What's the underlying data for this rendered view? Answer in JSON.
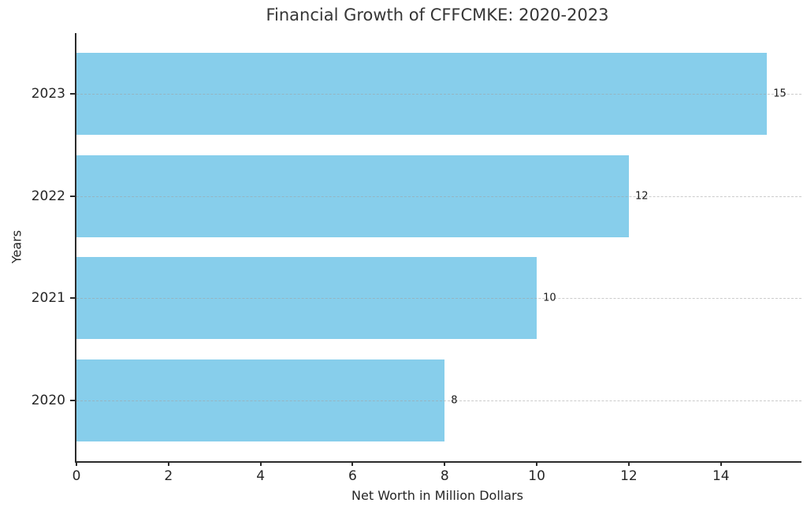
{
  "title": "Financial Growth of CFFCMKE: 2020-2023",
  "chart_data": {
    "type": "bar",
    "orientation": "horizontal",
    "title": "Financial Growth of CFFCMKE: 2020-2023",
    "categories": [
      "2023",
      "2022",
      "2021",
      "2020"
    ],
    "values": [
      15,
      12,
      10,
      8
    ],
    "value_labels": [
      "15",
      "12",
      "10",
      "8"
    ],
    "xlabel": "Net Worth in Million Dollars",
    "ylabel": "Years",
    "xlim": [
      0,
      15.75
    ],
    "xticks": [
      "0",
      "2",
      "4",
      "6",
      "8",
      "10",
      "12",
      "14"
    ],
    "grid": "horizontal dashed gridlines at each bar center",
    "legend": "none",
    "bar_color": "#87CEEB",
    "bar_height_fraction": 0.8
  },
  "colors": {
    "bar": "#87CEEB",
    "spine": "#2b2b2b",
    "text": "#262626",
    "title_text": "#363636",
    "gridline": "#a0a0a0",
    "background": "#ffffff"
  }
}
